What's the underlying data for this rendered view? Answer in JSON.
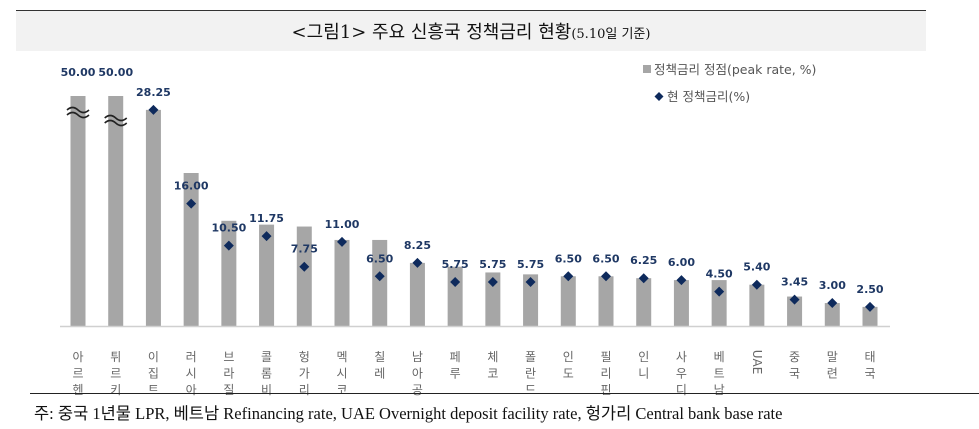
{
  "title": "<그림1> 주요 신흥국 정책금리 현황",
  "title_suffix": "(5.10일 기준)",
  "footnote": "주: 중국 1년물 LPR, 베트남 Refinancing rate, UAE Overnight deposit facility rate, 헝가리 Central bank base rate",
  "chart_data": {
    "type": "bar",
    "title": "<그림1> 주요 신흥국 정책금리 현황(5.10일 기준)",
    "xlabel": "",
    "ylabel": "",
    "grid": false,
    "legend_position": "top-right",
    "axis_break_categories": [
      "아르헨",
      "튀르키"
    ],
    "categories": [
      "아르헨",
      "튀르키",
      "이집트",
      "러시아",
      "브라질",
      "콜롬비",
      "헝가리",
      "멕시코",
      "칠레",
      "남아공",
      "페루",
      "체코",
      "폴란드",
      "인도",
      "필리핀",
      "인니",
      "사우디",
      "베트남",
      "UAE",
      "중국",
      "말련",
      "태국"
    ],
    "series": [
      {
        "name": "정책금리 정점(peak rate, %)",
        "type": "bar",
        "color": "#a6a6a6",
        "values": [
          50.0,
          50.0,
          28.25,
          20.0,
          13.75,
          13.25,
          13.0,
          11.25,
          11.25,
          8.25,
          7.75,
          7.0,
          6.75,
          6.5,
          6.5,
          6.25,
          6.0,
          6.0,
          5.4,
          3.85,
          3.0,
          2.5
        ]
      },
      {
        "name": "현 정책금리(%)",
        "type": "scatter",
        "marker": "diamond",
        "color": "#0e2a5c",
        "values": [
          50.0,
          50.0,
          28.25,
          16.0,
          10.5,
          11.75,
          7.75,
          11.0,
          6.5,
          8.25,
          5.75,
          5.75,
          5.75,
          6.5,
          6.5,
          6.25,
          6.0,
          4.5,
          5.4,
          3.45,
          3.0,
          2.5
        ]
      }
    ],
    "data_labels": [
      "50.00",
      "50.00",
      "28.25",
      "16.00",
      "10.50",
      "11.75",
      "7.75",
      "11.00",
      "6.50",
      "8.25",
      "5.75",
      "5.75",
      "5.75",
      "6.50",
      "6.50",
      "6.25",
      "6.00",
      "4.50",
      "5.40",
      "3.45",
      "3.00",
      "2.50"
    ]
  }
}
